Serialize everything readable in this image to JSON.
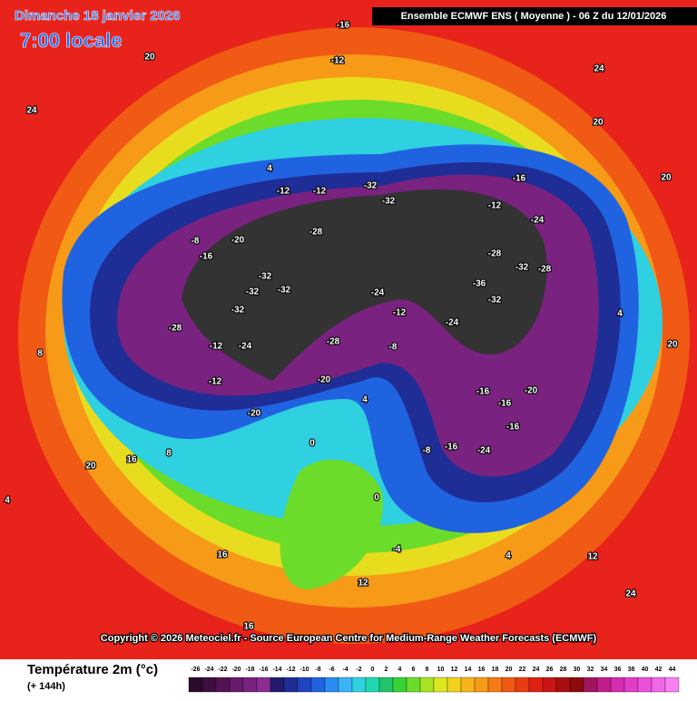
{
  "header": {
    "date": "Dimanche 18 janvier 2026",
    "time": "7:00 locale",
    "run": "Ensemble ECMWF ENS  ( Moyenne )  -  06 Z du 12/01/2026"
  },
  "copyright": "Copyright © 2026 Meteociel.fr - Source European Centre for Medium-Range Weather Forecasts (ECMWF)",
  "legend": {
    "title": "Température 2m (°c)",
    "lead": "(+ 144h)",
    "ticks": [
      -26,
      -24,
      -22,
      -20,
      -18,
      -16,
      -14,
      -12,
      -10,
      -8,
      -6,
      -4,
      -2,
      0,
      2,
      4,
      6,
      8,
      10,
      12,
      14,
      16,
      18,
      20,
      22,
      24,
      26,
      28,
      30,
      32,
      34,
      36,
      38,
      40,
      42,
      44
    ],
    "colors": [
      "#2b0a2b",
      "#3e0e40",
      "#521454",
      "#661a6a",
      "#7a2280",
      "#8c2c94",
      "#231c6e",
      "#1f2d96",
      "#1f44c0",
      "#2063e0",
      "#2a8cf0",
      "#3ab4f5",
      "#2fd0e0",
      "#20d8b0",
      "#22c46a",
      "#36d236",
      "#6cdc2a",
      "#a8e222",
      "#dce61e",
      "#f2d21c",
      "#f6b41a",
      "#f69a18",
      "#f47c16",
      "#f05a14",
      "#e83c14",
      "#e02014",
      "#c81414",
      "#aa0e0e",
      "#8c0a0a",
      "#a01460",
      "#c01c8c",
      "#d62cb0",
      "#e23cc8",
      "#ec50da",
      "#f266e8",
      "#f680f2"
    ]
  },
  "map_labels": [
    -16,
    -12,
    20,
    24,
    24,
    20,
    4,
    -12,
    -12,
    -32,
    -32,
    -28,
    -20,
    -8,
    -16,
    -32,
    -32,
    -32,
    -32,
    -28,
    -24,
    -28,
    -8,
    -24,
    -12,
    -24,
    -36,
    -32,
    -32,
    -28,
    -28,
    -24,
    -16,
    -12,
    -16,
    -16,
    -20,
    -24,
    -16,
    -16,
    4,
    -8,
    0,
    -4,
    12,
    4,
    12,
    24,
    16,
    16,
    20,
    4,
    16,
    -12,
    8,
    8,
    -12,
    -20,
    -20,
    0,
    20,
    4,
    20
  ]
}
